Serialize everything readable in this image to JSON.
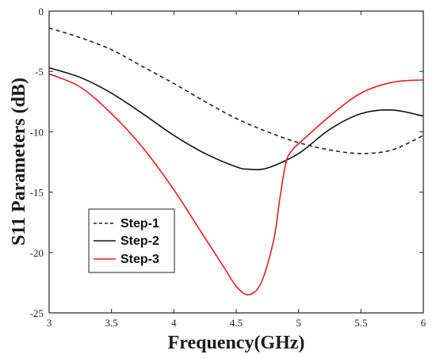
{
  "chart_data": {
    "type": "line",
    "title": "",
    "xlabel": "Frequency(GHz)",
    "ylabel": "S11 Parameters (dB)",
    "xlim": [
      3,
      6
    ],
    "ylim": [
      -25,
      0
    ],
    "xticks": [
      3,
      3.5,
      4,
      4.5,
      5,
      5.5,
      6
    ],
    "yticks": [
      0,
      -5,
      -10,
      -15,
      -20,
      -25
    ],
    "xtick_labels": [
      "3",
      "3.5",
      "4",
      "4.5",
      "5",
      "5.5",
      "6"
    ],
    "ytick_labels": [
      "0",
      "-5",
      "-10",
      "-15",
      "-20",
      "-25"
    ],
    "grid": false,
    "legend_position": "bottom-left",
    "series": [
      {
        "name": "Step-1",
        "color": "#222222",
        "dash": "dashed",
        "x": [
          3.0,
          3.25,
          3.5,
          3.75,
          4.0,
          4.25,
          4.5,
          4.75,
          5.0,
          5.25,
          5.5,
          5.75,
          6.0
        ],
        "y": [
          -1.4,
          -2.2,
          -3.2,
          -4.6,
          -6.0,
          -7.5,
          -8.9,
          -10.0,
          -10.9,
          -11.5,
          -11.8,
          -11.5,
          -10.3
        ]
      },
      {
        "name": "Step-2",
        "color": "#111111",
        "dash": "solid",
        "x": [
          3.0,
          3.25,
          3.5,
          3.75,
          4.0,
          4.25,
          4.5,
          4.6,
          4.75,
          5.0,
          5.25,
          5.5,
          5.75,
          6.0
        ],
        "y": [
          -4.7,
          -5.5,
          -6.8,
          -8.5,
          -10.3,
          -11.8,
          -12.9,
          -13.1,
          -13.0,
          -11.8,
          -9.8,
          -8.5,
          -8.2,
          -8.7
        ]
      },
      {
        "name": "Step-3",
        "color": "#e02020",
        "dash": "solid",
        "x": [
          3.0,
          3.25,
          3.5,
          3.75,
          4.0,
          4.2,
          4.4,
          4.5,
          4.6,
          4.7,
          4.8,
          4.85,
          4.9,
          4.95,
          5.0,
          5.25,
          5.5,
          5.75,
          6.0
        ],
        "y": [
          -5.2,
          -6.3,
          -8.5,
          -11.3,
          -14.8,
          -18.0,
          -21.2,
          -22.8,
          -23.5,
          -22.5,
          -19.0,
          -15.5,
          -12.5,
          -11.5,
          -11.0,
          -8.7,
          -6.8,
          -5.9,
          -5.7
        ]
      }
    ]
  }
}
